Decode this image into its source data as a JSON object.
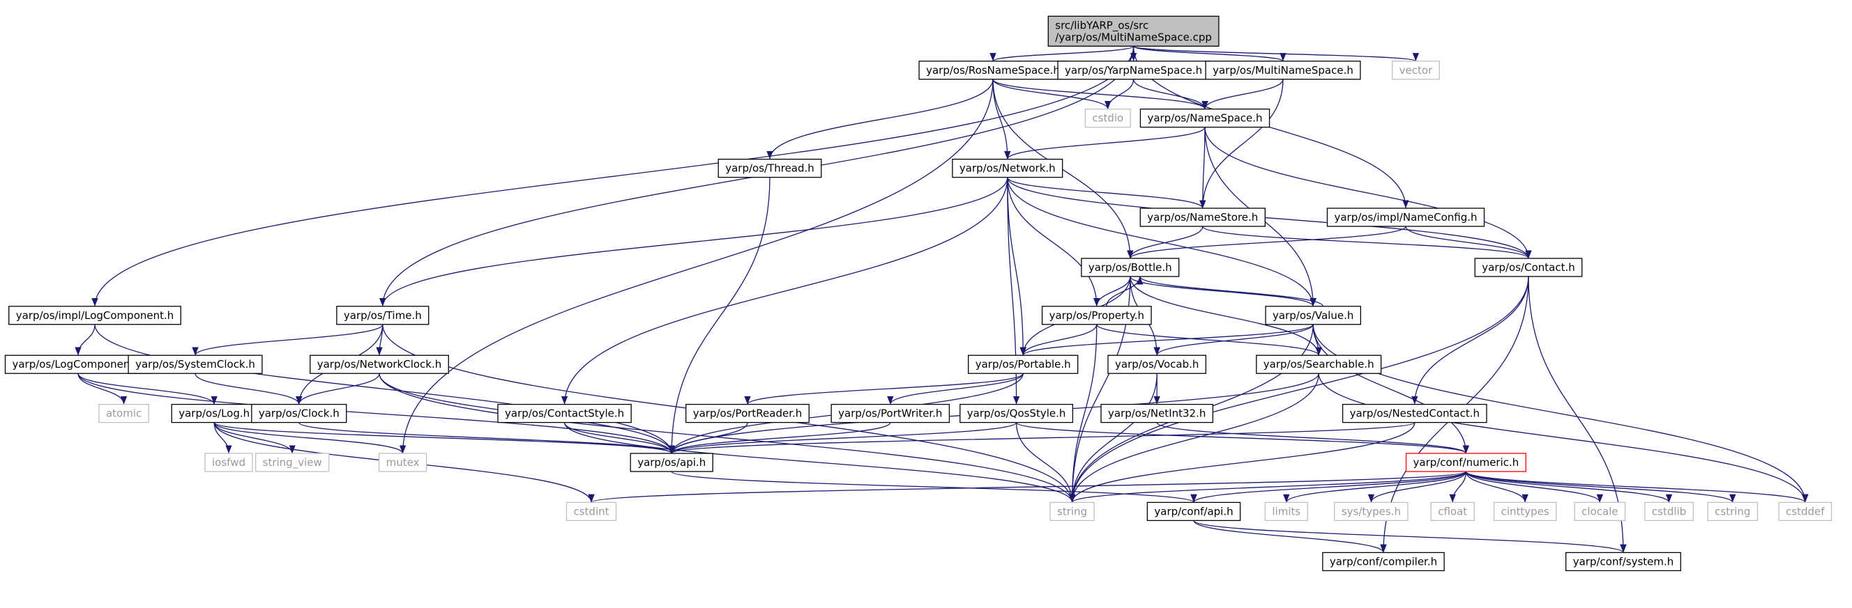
{
  "graph": {
    "title_lines": [
      "src/libYARP_os/src",
      "/yarp/os/MultiNameSpace.cpp"
    ],
    "colors": {
      "edge": "#191970",
      "root_fill": "#bfbfbf",
      "node_border": "#000000",
      "system_border": "#bfbfbf",
      "system_text": "#999999",
      "truncated_border": "#ff0000"
    },
    "nodes": [
      {
        "id": "root",
        "label": "src/libYARP_os/src\n/yarp/os/MultiNameSpace.cpp",
        "kind": "root"
      },
      {
        "id": "rosns",
        "label": "yarp/os/RosNameSpace.h",
        "kind": "normal"
      },
      {
        "id": "yarpns",
        "label": "yarp/os/YarpNameSpace.h",
        "kind": "normal"
      },
      {
        "id": "multins",
        "label": "yarp/os/MultiNameSpace.h",
        "kind": "normal"
      },
      {
        "id": "vector",
        "label": "vector",
        "kind": "system"
      },
      {
        "id": "cstdio",
        "label": "cstdio",
        "kind": "system"
      },
      {
        "id": "namespace",
        "label": "yarp/os/NameSpace.h",
        "kind": "normal"
      },
      {
        "id": "thread",
        "label": "yarp/os/Thread.h",
        "kind": "normal"
      },
      {
        "id": "network",
        "label": "yarp/os/Network.h",
        "kind": "normal"
      },
      {
        "id": "namestore",
        "label": "yarp/os/NameStore.h",
        "kind": "normal"
      },
      {
        "id": "nameconfig",
        "label": "yarp/os/impl/NameConfig.h",
        "kind": "normal"
      },
      {
        "id": "bottle",
        "label": "yarp/os/Bottle.h",
        "kind": "normal"
      },
      {
        "id": "contact",
        "label": "yarp/os/Contact.h",
        "kind": "normal"
      },
      {
        "id": "logcomp_impl",
        "label": "yarp/os/impl/LogComponent.h",
        "kind": "normal"
      },
      {
        "id": "time",
        "label": "yarp/os/Time.h",
        "kind": "normal"
      },
      {
        "id": "property",
        "label": "yarp/os/Property.h",
        "kind": "normal"
      },
      {
        "id": "value",
        "label": "yarp/os/Value.h",
        "kind": "normal"
      },
      {
        "id": "logcomp",
        "label": "yarp/os/LogComponent.h",
        "kind": "normal"
      },
      {
        "id": "sysclock",
        "label": "yarp/os/SystemClock.h",
        "kind": "normal"
      },
      {
        "id": "netclock",
        "label": "yarp/os/NetworkClock.h",
        "kind": "normal"
      },
      {
        "id": "portable",
        "label": "yarp/os/Portable.h",
        "kind": "normal"
      },
      {
        "id": "vocab",
        "label": "yarp/os/Vocab.h",
        "kind": "normal"
      },
      {
        "id": "searchable",
        "label": "yarp/os/Searchable.h",
        "kind": "normal"
      },
      {
        "id": "atomic",
        "label": "atomic",
        "kind": "system"
      },
      {
        "id": "log",
        "label": "yarp/os/Log.h",
        "kind": "normal"
      },
      {
        "id": "clock",
        "label": "yarp/os/Clock.h",
        "kind": "normal"
      },
      {
        "id": "contactstyle",
        "label": "yarp/os/ContactStyle.h",
        "kind": "normal"
      },
      {
        "id": "portreader",
        "label": "yarp/os/PortReader.h",
        "kind": "normal"
      },
      {
        "id": "portwriter",
        "label": "yarp/os/PortWriter.h",
        "kind": "normal"
      },
      {
        "id": "qosstyle",
        "label": "yarp/os/QosStyle.h",
        "kind": "normal"
      },
      {
        "id": "netint32",
        "label": "yarp/os/NetInt32.h",
        "kind": "normal"
      },
      {
        "id": "nested",
        "label": "yarp/os/NestedContact.h",
        "kind": "normal"
      },
      {
        "id": "iosfwd",
        "label": "iosfwd",
        "kind": "system"
      },
      {
        "id": "string_view",
        "label": "string_view",
        "kind": "system"
      },
      {
        "id": "mutex",
        "label": "mutex",
        "kind": "system"
      },
      {
        "id": "osapi",
        "label": "yarp/os/api.h",
        "kind": "normal"
      },
      {
        "id": "numeric",
        "label": "yarp/conf/numeric.h",
        "kind": "truncated"
      },
      {
        "id": "cstdint",
        "label": "cstdint",
        "kind": "system"
      },
      {
        "id": "string",
        "label": "string",
        "kind": "system"
      },
      {
        "id": "confapi",
        "label": "yarp/conf/api.h",
        "kind": "normal"
      },
      {
        "id": "limits",
        "label": "limits",
        "kind": "system"
      },
      {
        "id": "systypes",
        "label": "sys/types.h",
        "kind": "system"
      },
      {
        "id": "cfloat",
        "label": "cfloat",
        "kind": "system"
      },
      {
        "id": "cinttypes",
        "label": "cinttypes",
        "kind": "system"
      },
      {
        "id": "clocale",
        "label": "clocale",
        "kind": "system"
      },
      {
        "id": "cstdlib",
        "label": "cstdlib",
        "kind": "system"
      },
      {
        "id": "cstring",
        "label": "cstring",
        "kind": "system"
      },
      {
        "id": "cstddef",
        "label": "cstddef",
        "kind": "system"
      },
      {
        "id": "compiler",
        "label": "yarp/conf/compiler.h",
        "kind": "normal"
      },
      {
        "id": "system",
        "label": "yarp/conf/system.h",
        "kind": "normal"
      }
    ],
    "edges": [
      [
        "root",
        "logcomp_impl"
      ],
      [
        "root",
        "time"
      ],
      [
        "root",
        "rosns"
      ],
      [
        "root",
        "yarpns"
      ],
      [
        "root",
        "multins"
      ],
      [
        "root",
        "nameconfig"
      ],
      [
        "root",
        "vector"
      ],
      [
        "rosns",
        "namespace"
      ],
      [
        "rosns",
        "cstdio"
      ],
      [
        "rosns",
        "thread"
      ],
      [
        "rosns",
        "network"
      ],
      [
        "rosns",
        "bottle"
      ],
      [
        "rosns",
        "mutex"
      ],
      [
        "yarpns",
        "cstdio"
      ],
      [
        "yarpns",
        "namespace"
      ],
      [
        "multins",
        "namespace"
      ],
      [
        "multins",
        "namestore"
      ],
      [
        "namespace",
        "network"
      ],
      [
        "namespace",
        "namestore"
      ],
      [
        "namespace",
        "value"
      ],
      [
        "namespace",
        "contact"
      ],
      [
        "thread",
        "osapi"
      ],
      [
        "network",
        "time"
      ],
      [
        "network",
        "namestore"
      ],
      [
        "network",
        "property"
      ],
      [
        "network",
        "value"
      ],
      [
        "network",
        "contact"
      ],
      [
        "network",
        "portable"
      ],
      [
        "network",
        "contactstyle"
      ],
      [
        "network",
        "qosstyle"
      ],
      [
        "namestore",
        "bottle"
      ],
      [
        "namestore",
        "contact"
      ],
      [
        "nameconfig",
        "bottle"
      ],
      [
        "nameconfig",
        "contact"
      ],
      [
        "bottle",
        "property"
      ],
      [
        "bottle",
        "value"
      ],
      [
        "bottle",
        "portable"
      ],
      [
        "bottle",
        "vocab"
      ],
      [
        "bottle",
        "searchable"
      ],
      [
        "bottle",
        "string"
      ],
      [
        "contact",
        "nested"
      ],
      [
        "contact",
        "string"
      ],
      [
        "contact",
        "compiler"
      ],
      [
        "contact",
        "system"
      ],
      [
        "property",
        "bottle"
      ],
      [
        "property",
        "portable"
      ],
      [
        "property",
        "searchable"
      ],
      [
        "property",
        "string"
      ],
      [
        "value",
        "bottle"
      ],
      [
        "value",
        "portable"
      ],
      [
        "value",
        "vocab"
      ],
      [
        "value",
        "searchable"
      ],
      [
        "value",
        "numeric"
      ],
      [
        "value",
        "string"
      ],
      [
        "value",
        "cstddef"
      ],
      [
        "logcomp_impl",
        "logcomp"
      ],
      [
        "logcomp_impl",
        "osapi"
      ],
      [
        "time",
        "sysclock"
      ],
      [
        "time",
        "netclock"
      ],
      [
        "time",
        "clock"
      ],
      [
        "time",
        "string"
      ],
      [
        "logcomp",
        "atomic"
      ],
      [
        "logcomp",
        "log"
      ],
      [
        "logcomp",
        "osapi"
      ],
      [
        "sysclock",
        "clock"
      ],
      [
        "netclock",
        "clock"
      ],
      [
        "netclock",
        "osapi"
      ],
      [
        "netclock",
        "string"
      ],
      [
        "portable",
        "portreader"
      ],
      [
        "portable",
        "portwriter"
      ],
      [
        "portable",
        "osapi"
      ],
      [
        "vocab",
        "netint32"
      ],
      [
        "vocab",
        "string"
      ],
      [
        "searchable",
        "osapi"
      ],
      [
        "searchable",
        "string"
      ],
      [
        "searchable",
        "cstddef"
      ],
      [
        "log",
        "iosfwd"
      ],
      [
        "log",
        "string_view"
      ],
      [
        "log",
        "osapi"
      ],
      [
        "log",
        "mutex"
      ],
      [
        "log",
        "cstdint"
      ],
      [
        "clock",
        "osapi"
      ],
      [
        "contactstyle",
        "osapi"
      ],
      [
        "contactstyle",
        "string"
      ],
      [
        "portreader",
        "osapi"
      ],
      [
        "portwriter",
        "osapi"
      ],
      [
        "qosstyle",
        "osapi"
      ],
      [
        "qosstyle",
        "numeric"
      ],
      [
        "qosstyle",
        "string"
      ],
      [
        "netint32",
        "numeric"
      ],
      [
        "nested",
        "osapi"
      ],
      [
        "nested",
        "string"
      ],
      [
        "osapi",
        "confapi"
      ],
      [
        "numeric",
        "cstdint"
      ],
      [
        "numeric",
        "string"
      ],
      [
        "numeric",
        "confapi"
      ],
      [
        "numeric",
        "limits"
      ],
      [
        "numeric",
        "systypes"
      ],
      [
        "numeric",
        "cfloat"
      ],
      [
        "numeric",
        "cinttypes"
      ],
      [
        "numeric",
        "clocale"
      ],
      [
        "numeric",
        "cstdlib"
      ],
      [
        "numeric",
        "cstring"
      ],
      [
        "numeric",
        "cstddef"
      ],
      [
        "confapi",
        "compiler"
      ],
      [
        "confapi",
        "system"
      ]
    ]
  }
}
